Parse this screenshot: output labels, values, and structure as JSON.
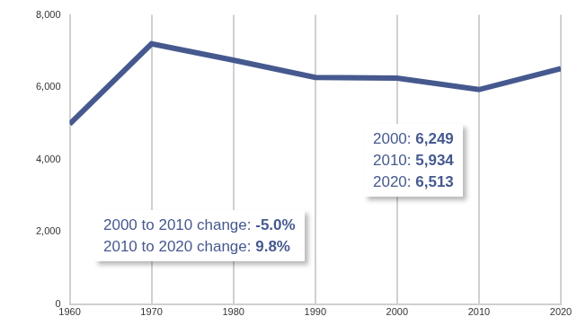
{
  "chart_data": {
    "type": "line",
    "x": [
      1960,
      1970,
      1980,
      1990,
      2000,
      2010,
      2020
    ],
    "values": [
      4980,
      7200,
      6750,
      6270,
      6249,
      5934,
      6513
    ],
    "color": "#46598f",
    "xlim": [
      1960,
      2020
    ],
    "xticks": [
      1960,
      1970,
      1980,
      1990,
      2000,
      2010,
      2020
    ],
    "ylim": [
      0,
      8000
    ],
    "yticks": [
      0,
      {
        "value": 2000,
        "label": "2,000"
      },
      {
        "value": 4000,
        "label": "4,000"
      },
      {
        "value": 6000,
        "label": "6,000"
      },
      {
        "value": 8000,
        "label": "8,000"
      }
    ],
    "grid": "x",
    "annotations": [
      {
        "lines": [
          {
            "text": "2000:",
            "bold": "6,249"
          },
          {
            "text": "2010:",
            "bold": "5,934"
          },
          {
            "text": "2020:",
            "bold": "6,513"
          }
        ]
      },
      {
        "lines": [
          {
            "text": "2000 to 2010 change:",
            "bold": "-5.0%"
          },
          {
            "text": "2010 to 2020 change:",
            "bold": "9.8%"
          }
        ]
      }
    ]
  }
}
